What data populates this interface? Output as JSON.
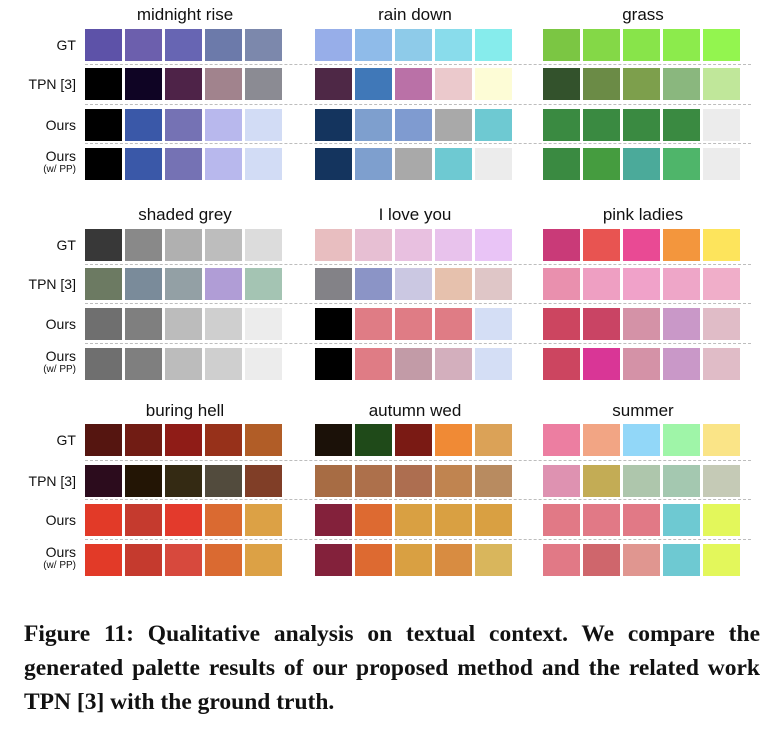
{
  "row_labels": [
    {
      "main": "GT",
      "sub": ""
    },
    {
      "main": "TPN [3]",
      "sub": ""
    },
    {
      "main": "Ours",
      "sub": ""
    },
    {
      "main": "Ours",
      "sub": "(w/ PP)"
    }
  ],
  "groups": [
    {
      "title": "midnight rise",
      "rows": [
        [
          "#5d52a8",
          "#6c5fad",
          "#6765b3",
          "#6c7aaa",
          "#7c88ac"
        ],
        [
          "#000000",
          "#0f0424",
          "#4e2348",
          "#a1838d",
          "#8b8b93"
        ],
        [
          "#000000",
          "#3a58a8",
          "#7572b4",
          "#b8b8ed",
          "#d2dcf5"
        ],
        [
          "#000000",
          "#3a58a8",
          "#7572b4",
          "#b8b8ed",
          "#d2dcf5"
        ]
      ]
    },
    {
      "title": "rain down",
      "rows": [
        [
          "#97aee9",
          "#8fbbe9",
          "#8ecbe9",
          "#89dceb",
          "#86ecec"
        ],
        [
          "#4e2846",
          "#4078b8",
          "#ba71a7",
          "#ebc9cc",
          "#fdfcd6"
        ],
        [
          "#14345e",
          "#7e9fce",
          "#7f9bd0",
          "#a9a9a9",
          "#6ec9d2"
        ],
        [
          "#14345e",
          "#7e9fce",
          "#a9a9a9",
          "#6ec9d2",
          "#ececec"
        ]
      ]
    },
    {
      "title": "grass",
      "rows": [
        [
          "#7bc643",
          "#84d847",
          "#88e44a",
          "#8ceb4c",
          "#93f54f"
        ],
        [
          "#33522c",
          "#6b8b46",
          "#7d9f4c",
          "#8ab77e",
          "#c0e79a"
        ],
        [
          "#3a8a41",
          "#3a8a41",
          "#3a8a41",
          "#3a8a41",
          "#ececec"
        ],
        [
          "#3a8a41",
          "#459c3f",
          "#4baa9a",
          "#4fb56a",
          "#ececec"
        ]
      ]
    },
    {
      "title": "shaded grey",
      "rows": [
        [
          "#383838",
          "#898989",
          "#b0b0b0",
          "#bdbdbd",
          "#dcdcdc"
        ],
        [
          "#6c7a62",
          "#7a8b9a",
          "#93a0a5",
          "#b09dd6",
          "#a4c4b3"
        ],
        [
          "#6f6f6f",
          "#7f7f7f",
          "#bcbcbc",
          "#cfcfcf",
          "#ececec"
        ],
        [
          "#6f6f6f",
          "#7f7f7f",
          "#bcbcbc",
          "#cfcfcf",
          "#ececec"
        ]
      ]
    },
    {
      "title": "I love you",
      "rows": [
        [
          "#e8bec0",
          "#e7bfd3",
          "#e8c0e0",
          "#e8c2ec",
          "#e9c4f6"
        ],
        [
          "#838287",
          "#8b94c6",
          "#cbc8e2",
          "#e6c1ad",
          "#dfc6c7"
        ],
        [
          "#000000",
          "#df7c85",
          "#df7c85",
          "#df7c85",
          "#d4def5"
        ],
        [
          "#000000",
          "#df7c85",
          "#c29ba7",
          "#d3afbd",
          "#d4def5"
        ]
      ]
    },
    {
      "title": "pink ladies",
      "rows": [
        [
          "#c93a78",
          "#e85451",
          "#e94a94",
          "#f3963d",
          "#fde45c"
        ],
        [
          "#e990ae",
          "#ee9fc2",
          "#f0a2c9",
          "#eea6c8",
          "#f0aec9"
        ],
        [
          "#cc4560",
          "#c94464",
          "#d492a7",
          "#c998c8",
          "#e0bcc7"
        ],
        [
          "#cc4560",
          "#d93696",
          "#d492a7",
          "#c998c8",
          "#e0bcc7"
        ]
      ]
    },
    {
      "title": "buring hell",
      "rows": [
        [
          "#551510",
          "#711c14",
          "#8f1c17",
          "#97311a",
          "#b15d27"
        ],
        [
          "#2c0c1d",
          "#231505",
          "#342a13",
          "#524b3d",
          "#803e27"
        ],
        [
          "#e23a28",
          "#c53a2e",
          "#e33a2c",
          "#da6a31",
          "#dca145"
        ],
        [
          "#e23a28",
          "#c53a2e",
          "#d7493d",
          "#da6a31",
          "#dca145"
        ]
      ]
    },
    {
      "title": "autumn wed",
      "rows": [
        [
          "#1b1108",
          "#1f4a19",
          "#7a1a14",
          "#f08a35",
          "#dba257"
        ],
        [
          "#a76c44",
          "#ad704b",
          "#ad6e50",
          "#c08450",
          "#b88b60"
        ],
        [
          "#83213b",
          "#dd6a31",
          "#d9a042",
          "#d9a042",
          "#d9a042"
        ],
        [
          "#83213b",
          "#dd6a31",
          "#d9a042",
          "#d88c41",
          "#d9b65c"
        ]
      ]
    },
    {
      "title": "summer",
      "rows": [
        [
          "#ec7ea1",
          "#f2a584",
          "#92d7f8",
          "#9ff5a8",
          "#fae487"
        ],
        [
          "#de92b1",
          "#c3ac55",
          "#aec6ac",
          "#a4c8b0",
          "#c5cab6"
        ],
        [
          "#e17986",
          "#e17986",
          "#e17986",
          "#6ec9d2",
          "#e3f75b"
        ],
        [
          "#e17986",
          "#cf666c",
          "#e09690",
          "#6ec9d2",
          "#e3f75b"
        ]
      ]
    }
  ],
  "caption": "Figure 11: Qualitative analysis on textual context. We compare the generated palette results of our proposed method and the related work TPN [3] with the ground truth."
}
